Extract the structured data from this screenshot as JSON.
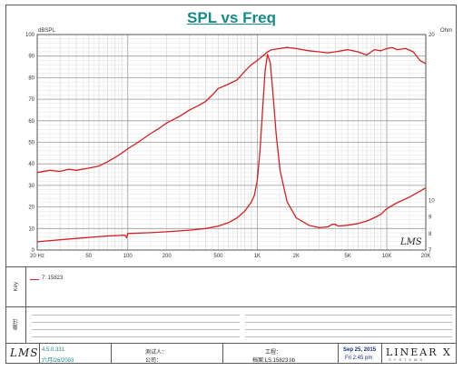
{
  "chart_data": {
    "type": "line",
    "title": "SPL vs Freq",
    "left_unit": "dBSPL",
    "right_unit": "Ohm",
    "x_scale": "log",
    "xlim": [
      20,
      20000
    ],
    "ylim_left": [
      0,
      100
    ],
    "ylim_right": [
      7,
      20
    ],
    "x_ticks": [
      {
        "value": 20,
        "label": "20 Hz"
      },
      {
        "value": 50,
        "label": "50"
      },
      {
        "value": 100,
        "label": "100"
      },
      {
        "value": 200,
        "label": "200"
      },
      {
        "value": 500,
        "label": "500"
      },
      {
        "value": 1000,
        "label": "1K"
      },
      {
        "value": 2000,
        "label": "2K"
      },
      {
        "value": 5000,
        "label": "5K"
      },
      {
        "value": 10000,
        "label": "10K"
      },
      {
        "value": 20000,
        "label": "20K"
      }
    ],
    "y_left_ticks": [
      0,
      10,
      20,
      30,
      40,
      50,
      60,
      70,
      80,
      90,
      100
    ],
    "y_right_ticks": [
      7,
      8,
      9,
      10,
      20
    ],
    "grid": true,
    "color": "#d42020",
    "series": [
      {
        "name": "7: 15823",
        "axis": "left",
        "points": [
          [
            20,
            36
          ],
          [
            25,
            37
          ],
          [
            30,
            36.5
          ],
          [
            35,
            37.5
          ],
          [
            40,
            37
          ],
          [
            50,
            38
          ],
          [
            60,
            39
          ],
          [
            70,
            41
          ],
          [
            80,
            43
          ],
          [
            90,
            45
          ],
          [
            100,
            47
          ],
          [
            120,
            50
          ],
          [
            150,
            54
          ],
          [
            180,
            57
          ],
          [
            200,
            59
          ],
          [
            250,
            62
          ],
          [
            300,
            65
          ],
          [
            350,
            67
          ],
          [
            400,
            69
          ],
          [
            450,
            72
          ],
          [
            500,
            75
          ],
          [
            600,
            77
          ],
          [
            700,
            79
          ],
          [
            800,
            83
          ],
          [
            900,
            86
          ],
          [
            1000,
            88
          ],
          [
            1100,
            90
          ],
          [
            1200,
            92
          ],
          [
            1300,
            93
          ],
          [
            1500,
            93.5
          ],
          [
            1700,
            94
          ],
          [
            2000,
            93.5
          ],
          [
            2500,
            92.5
          ],
          [
            3000,
            92
          ],
          [
            3500,
            91.5
          ],
          [
            4000,
            92
          ],
          [
            5000,
            93
          ],
          [
            6000,
            92
          ],
          [
            7000,
            90.5
          ],
          [
            8000,
            93
          ],
          [
            9000,
            92.5
          ],
          [
            10000,
            93.5
          ],
          [
            11000,
            94
          ],
          [
            12000,
            93
          ],
          [
            14000,
            93.5
          ],
          [
            16000,
            92
          ],
          [
            18000,
            88
          ],
          [
            20000,
            86.5
          ]
        ]
      },
      {
        "name": "",
        "axis": "right",
        "points": [
          [
            20,
            7.5
          ],
          [
            40,
            7.7
          ],
          [
            70,
            7.85
          ],
          [
            95,
            7.9
          ],
          [
            98,
            7.75
          ],
          [
            100,
            8.0
          ],
          [
            150,
            8.05
          ],
          [
            200,
            8.1
          ],
          [
            300,
            8.2
          ],
          [
            400,
            8.3
          ],
          [
            500,
            8.45
          ],
          [
            600,
            8.65
          ],
          [
            700,
            8.95
          ],
          [
            800,
            9.35
          ],
          [
            900,
            9.9
          ],
          [
            950,
            10.3
          ],
          [
            1000,
            11.2
          ],
          [
            1050,
            13.0
          ],
          [
            1100,
            15.5
          ],
          [
            1150,
            17.8
          ],
          [
            1200,
            18.8
          ],
          [
            1260,
            18.3
          ],
          [
            1320,
            16.5
          ],
          [
            1400,
            14.0
          ],
          [
            1500,
            11.8
          ],
          [
            1700,
            9.9
          ],
          [
            2000,
            8.95
          ],
          [
            2500,
            8.5
          ],
          [
            3000,
            8.35
          ],
          [
            3500,
            8.4
          ],
          [
            3800,
            8.55
          ],
          [
            4000,
            8.55
          ],
          [
            4200,
            8.45
          ],
          [
            5000,
            8.5
          ],
          [
            6000,
            8.6
          ],
          [
            7000,
            8.75
          ],
          [
            8000,
            8.95
          ],
          [
            9000,
            9.15
          ],
          [
            10000,
            9.5
          ],
          [
            12000,
            9.85
          ],
          [
            15000,
            10.2
          ],
          [
            18000,
            10.55
          ],
          [
            20000,
            10.75
          ]
        ]
      }
    ]
  },
  "legend": {
    "entries": [
      {
        "label": "7: 15823"
      }
    ]
  },
  "panel_labels": {
    "legend": "Key",
    "notes": "备注"
  },
  "footer": {
    "version": "4.5.0.331",
    "date_cn": "六月/26/2003",
    "tester_label": "测试人：",
    "company_label": "公司：",
    "project_label": "工程：",
    "library": "档案:LS.15823.lib",
    "date": "Sep 25, 2015",
    "time": "Fri  2:45 pm",
    "brand": "LINEAR X",
    "brand_sub": "SYSTEMS",
    "logo": "LMS"
  }
}
